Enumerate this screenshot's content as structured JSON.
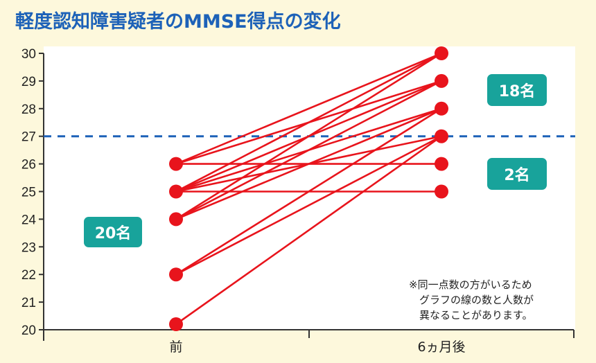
{
  "title": "軽度認知障害疑者のMMSE得点の変化",
  "badges": {
    "before_count": "20名",
    "above_threshold_count": "18名",
    "below_threshold_count": "2名"
  },
  "note": "※同一点数の方がいるため\n　グラフの線の数と人数が\n　異なることがあります。",
  "colors": {
    "background": "#fdf8dc",
    "plot_background": "#ffffff",
    "line": "#e8141c",
    "threshold": "#1d62b8",
    "badge": "#18a39b",
    "title": "#1d62b8"
  },
  "chart_data": {
    "type": "line",
    "title": "軽度認知障害疑者のMMSE得点の変化",
    "xlabel": "",
    "ylabel": "",
    "categories": [
      "前",
      "6ヵ月後"
    ],
    "x_tick_labels": [
      "前",
      "6ヵ月後"
    ],
    "y_ticks": [
      20,
      21,
      22,
      23,
      24,
      25,
      26,
      27,
      28,
      29,
      30
    ],
    "ylim": [
      20,
      30
    ],
    "grid": false,
    "threshold_line": {
      "value": 27,
      "style": "dashed",
      "color": "#1d62b8"
    },
    "pairs": [
      {
        "before": 26,
        "after": 30
      },
      {
        "before": 26,
        "after": 29
      },
      {
        "before": 26,
        "after": 26
      },
      {
        "before": 25,
        "after": 30
      },
      {
        "before": 25,
        "after": 29
      },
      {
        "before": 25,
        "after": 28
      },
      {
        "before": 25,
        "after": 27
      },
      {
        "before": 25,
        "after": 25
      },
      {
        "before": 24,
        "after": 30
      },
      {
        "before": 24,
        "after": 29
      },
      {
        "before": 24,
        "after": 28
      },
      {
        "before": 22,
        "after": 28
      },
      {
        "before": 22,
        "after": 27
      },
      {
        "before": 20.2,
        "after": 27
      }
    ],
    "before_points": [
      26,
      25,
      24,
      22,
      20.2
    ],
    "after_points": [
      30,
      29,
      28,
      27,
      26,
      25
    ],
    "annotations": [
      {
        "text": "20名",
        "position": "left of 前"
      },
      {
        "text": "18名",
        "position": "above threshold (≥27) at 6ヵ月後"
      },
      {
        "text": "2名",
        "position": "below threshold (<27) at 6ヵ月後"
      },
      {
        "text": "※同一点数の方がいるため グラフの線の数と人数が 異なることがあります。",
        "position": "bottom right"
      }
    ]
  }
}
